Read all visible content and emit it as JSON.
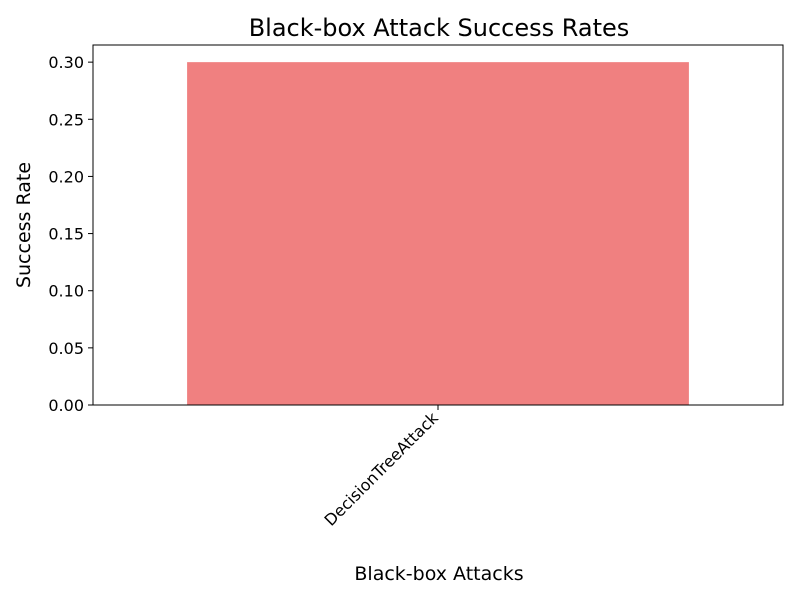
{
  "chart_data": {
    "type": "bar",
    "title": "Black-box Attack Success Rates",
    "xlabel": "Black-box Attacks",
    "ylabel": "Success Rate",
    "categories": [
      "DecisionTreeAttack"
    ],
    "values": [
      0.3
    ],
    "ylim": [
      0,
      0.315
    ],
    "yticks": [
      0.0,
      0.05,
      0.1,
      0.15,
      0.2,
      0.25,
      0.3
    ],
    "ytick_labels": [
      "0.00",
      "0.05",
      "0.10",
      "0.15",
      "0.20",
      "0.25",
      "0.30"
    ],
    "bar_color": "#f08080",
    "grid": false,
    "legend": "none"
  }
}
